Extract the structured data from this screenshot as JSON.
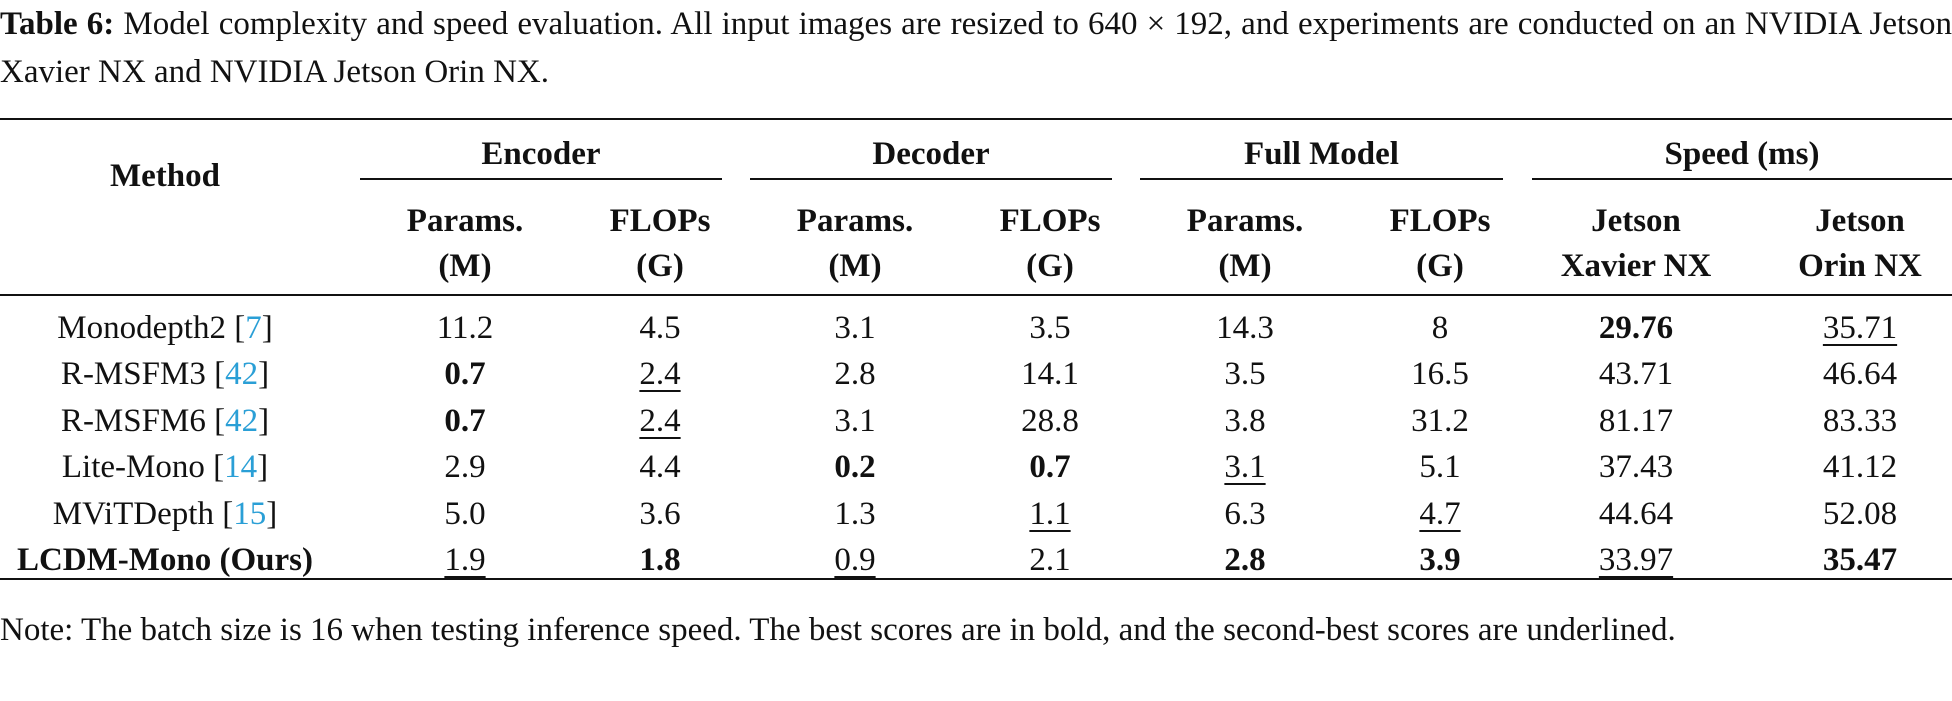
{
  "caption": {
    "label": "Table 6:",
    "text": "Model complexity and speed evaluation. All input images are resized to 640 × 192, and experiments are conducted on an NVIDIA Jetson Xavier NX and NVIDIA Jetson Orin NX."
  },
  "header": {
    "method": "Method",
    "groups": [
      "Encoder",
      "Decoder",
      "Full Model",
      "Speed (ms)"
    ],
    "subcols": [
      [
        "Params.",
        "(M)"
      ],
      [
        "FLOPs",
        "(G)"
      ],
      [
        "Params.",
        "(M)"
      ],
      [
        "FLOPs",
        "(G)"
      ],
      [
        "Params.",
        "(M)"
      ],
      [
        "FLOPs",
        "(G)"
      ],
      [
        "Jetson",
        "Xavier NX"
      ],
      [
        "Jetson",
        "Orin NX"
      ]
    ]
  },
  "rows": [
    {
      "method": "Monodepth2",
      "cite": "7",
      "method_bold": false,
      "values": [
        "11.2",
        "4.5",
        "3.1",
        "3.5",
        "14.3",
        "8",
        "29.76",
        "35.71"
      ],
      "styles": [
        "",
        "",
        "",
        "",
        "",
        "",
        "b",
        "u"
      ]
    },
    {
      "method": "R-MSFM3",
      "cite": "42",
      "method_bold": false,
      "values": [
        "0.7",
        "2.4",
        "2.8",
        "14.1",
        "3.5",
        "16.5",
        "43.71",
        "46.64"
      ],
      "styles": [
        "b",
        "u",
        "",
        "",
        "",
        "",
        "",
        ""
      ]
    },
    {
      "method": "R-MSFM6",
      "cite": "42",
      "method_bold": false,
      "values": [
        "0.7",
        "2.4",
        "3.1",
        "28.8",
        "3.8",
        "31.2",
        "81.17",
        "83.33"
      ],
      "styles": [
        "b",
        "u",
        "",
        "",
        "",
        "",
        "",
        ""
      ]
    },
    {
      "method": "Lite-Mono",
      "cite": "14",
      "method_bold": false,
      "values": [
        "2.9",
        "4.4",
        "0.2",
        "0.7",
        "3.1",
        "5.1",
        "37.43",
        "41.12"
      ],
      "styles": [
        "",
        "",
        "b",
        "b",
        "u",
        "",
        "",
        ""
      ]
    },
    {
      "method": "MViTDepth",
      "cite": "15",
      "method_bold": false,
      "values": [
        "5.0",
        "3.6",
        "1.3",
        "1.1",
        "6.3",
        "4.7",
        "44.64",
        "52.08"
      ],
      "styles": [
        "",
        "",
        "",
        "u",
        "",
        "u",
        "",
        ""
      ]
    },
    {
      "method": "LCDM-Mono (Ours)",
      "cite": "",
      "method_bold": true,
      "values": [
        "1.9",
        "1.8",
        "0.9",
        "2.1",
        "2.8",
        "3.9",
        "33.97",
        "35.47"
      ],
      "styles": [
        "u",
        "b",
        "u",
        "",
        "b",
        "b",
        "u",
        "b"
      ]
    }
  ],
  "note": "Note: The batch size is 16 when testing inference speed. The best scores are in bold, and the second-best scores are underlined."
}
